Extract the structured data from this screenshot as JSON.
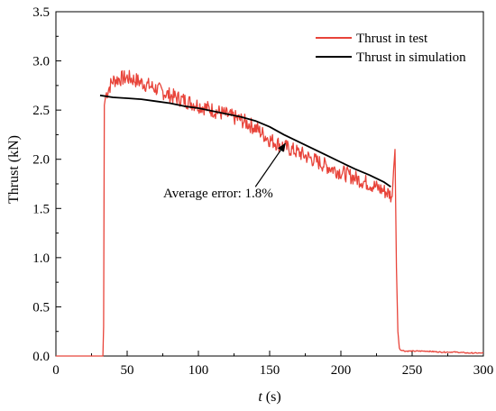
{
  "chart_data": {
    "type": "line",
    "xlabel_italic": "t",
    "xlabel_unit": " (s)",
    "ylabel": "Thrust (kN)",
    "xlim": [
      0,
      300
    ],
    "ylim": [
      0,
      3.5
    ],
    "x_ticks": [
      0,
      50,
      100,
      150,
      200,
      250,
      300
    ],
    "x_tick_labels": [
      "0",
      "50",
      "100",
      "150",
      "200",
      "250",
      "300"
    ],
    "y_ticks": [
      0,
      0.5,
      1.0,
      1.5,
      2.0,
      2.5,
      3.0,
      3.5
    ],
    "y_tick_labels": [
      "0.0",
      "0.5",
      "1.0",
      "1.5",
      "2.0",
      "2.5",
      "3.0",
      "3.5"
    ],
    "grid": false,
    "legend_position": "top-right",
    "series": [
      {
        "name": "Thrust in test",
        "color": "#e8443a",
        "x": [
          0,
          10,
          20,
          30,
          33,
          33.5,
          34,
          35,
          37,
          40,
          45,
          50,
          55,
          60,
          70,
          80,
          90,
          100,
          110,
          120,
          130,
          140,
          150,
          160,
          170,
          180,
          190,
          200,
          210,
          220,
          230,
          234,
          235,
          236,
          237,
          238,
          239,
          240,
          241,
          242,
          243,
          245,
          250,
          260,
          270,
          280,
          290,
          300
        ],
        "y": [
          0.0,
          0.0,
          0.0,
          0.0,
          0.0,
          0.3,
          2.55,
          2.65,
          2.72,
          2.8,
          2.82,
          2.83,
          2.81,
          2.78,
          2.72,
          2.65,
          2.6,
          2.55,
          2.5,
          2.45,
          2.4,
          2.32,
          2.2,
          2.13,
          2.07,
          2.0,
          1.93,
          1.87,
          1.81,
          1.75,
          1.68,
          1.65,
          1.63,
          1.62,
          1.9,
          2.1,
          0.9,
          0.25,
          0.08,
          0.06,
          0.06,
          0.05,
          0.05,
          0.05,
          0.04,
          0.04,
          0.03,
          0.03
        ]
      },
      {
        "name": "Thrust in simulation",
        "color": "#000000",
        "x": [
          31,
          40,
          50,
          60,
          70,
          80,
          90,
          100,
          110,
          120,
          130,
          140,
          150,
          160,
          170,
          180,
          190,
          200,
          210,
          220,
          230,
          235
        ],
        "y": [
          2.65,
          2.63,
          2.62,
          2.61,
          2.59,
          2.57,
          2.54,
          2.52,
          2.49,
          2.46,
          2.43,
          2.39,
          2.33,
          2.25,
          2.18,
          2.11,
          2.04,
          1.97,
          1.9,
          1.84,
          1.77,
          1.72
        ]
      }
    ],
    "annotation": {
      "text": "Average error: 1.8%",
      "arrow_from": [
        140,
        1.72
      ],
      "arrow_to": [
        161,
        2.16
      ]
    }
  }
}
